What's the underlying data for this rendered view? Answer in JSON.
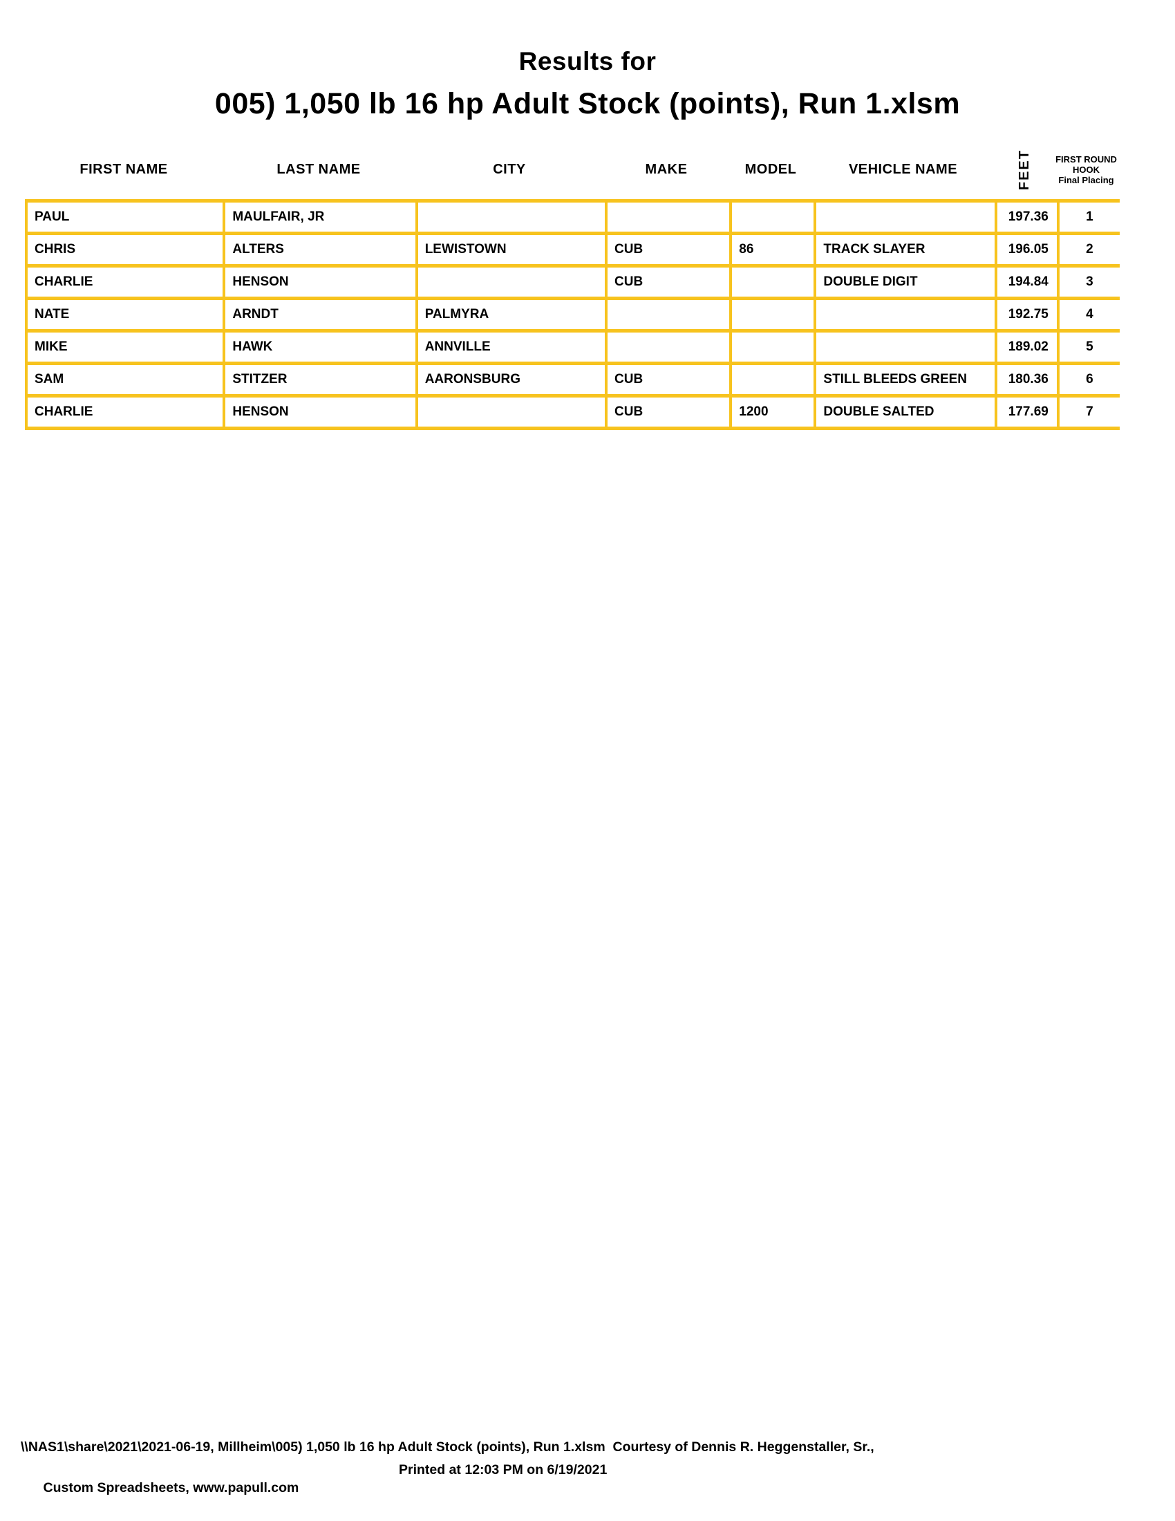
{
  "colors": {
    "border_gold": "#F7C31E",
    "text": "#000000",
    "page_background": "#FFFFFF"
  },
  "title": {
    "line1": "Results for",
    "line2": "005) 1,050 lb 16 hp Adult Stock (points), Run 1.xlsm"
  },
  "table": {
    "headers": {
      "first_name": "FIRST NAME",
      "last_name": "LAST NAME",
      "city": "CITY",
      "make": "MAKE",
      "model": "MODEL",
      "vehicle_name": "VEHICLE NAME",
      "feet": "FEET",
      "placing_line1": "FIRST ROUND",
      "placing_line2": "HOOK",
      "placing_line3": "Final Placing"
    },
    "row_keys": [
      "first_name",
      "last_name",
      "city",
      "make",
      "model",
      "vehicle_name",
      "feet",
      "placing"
    ],
    "rows": [
      {
        "first_name": "PAUL",
        "last_name": "MAULFAIR, JR",
        "city": "",
        "make": "",
        "model": "",
        "vehicle_name": "",
        "feet": "197.36",
        "placing": "1"
      },
      {
        "first_name": "CHRIS",
        "last_name": "ALTERS",
        "city": "LEWISTOWN",
        "make": "CUB",
        "model": "86",
        "vehicle_name": "TRACK SLAYER",
        "feet": "196.05",
        "placing": "2"
      },
      {
        "first_name": "CHARLIE",
        "last_name": "HENSON",
        "city": "",
        "make": "CUB",
        "model": "",
        "vehicle_name": "DOUBLE DIGIT",
        "feet": "194.84",
        "placing": "3"
      },
      {
        "first_name": "NATE",
        "last_name": "ARNDT",
        "city": "PALMYRA",
        "make": "",
        "model": "",
        "vehicle_name": "",
        "feet": "192.75",
        "placing": "4"
      },
      {
        "first_name": "MIKE",
        "last_name": "HAWK",
        "city": "ANNVILLE",
        "make": "",
        "model": "",
        "vehicle_name": "",
        "feet": "189.02",
        "placing": "5"
      },
      {
        "first_name": "SAM",
        "last_name": "STITZER",
        "city": "AARONSBURG",
        "make": "CUB",
        "model": "",
        "vehicle_name": "STILL BLEEDS GREEN",
        "feet": "180.36",
        "placing": "6"
      },
      {
        "first_name": "CHARLIE",
        "last_name": "HENSON",
        "city": "",
        "make": "CUB",
        "model": "1200",
        "vehicle_name": "DOUBLE SALTED",
        "feet": "177.69",
        "placing": "7"
      }
    ]
  },
  "footer": {
    "line1": "\\\\NAS1\\share\\2021\\2021-06-19, Millheim\\005) 1,050 lb 16 hp Adult Stock (points), Run 1.xlsm  Courtesy of Dennis R. Heggenstaller, Sr.,",
    "line2_left": "Custom Spreadsheets, www.papull.com",
    "line2_right": "Printed at 12:03 PM on 6/19/2021"
  }
}
